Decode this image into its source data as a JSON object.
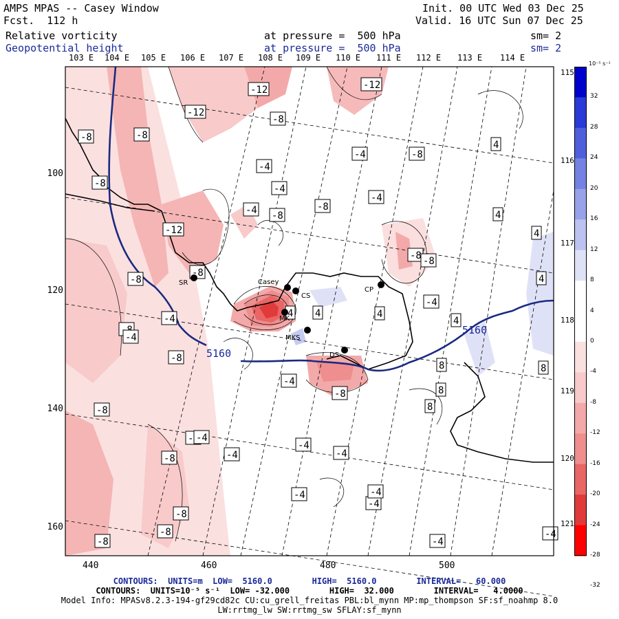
{
  "header": {
    "title": "AMPS MPAS -- Casey Window",
    "fcst": "Fcst.  112 h",
    "init": "Init. 00 UTC Wed 03 Dec 25",
    "valid": "Valid. 16 UTC Sun 07 Dec 25",
    "field1": "Relative vorticity",
    "field1_level": "at pressure =  500 hPa",
    "field1_sm": "sm= 2",
    "field2": "Geopotential height",
    "field2_level": "at pressure =  500 hPa",
    "field2_sm": "sm= 2"
  },
  "map": {
    "top_longitudes": [
      "103 E",
      "104 E",
      "105 E",
      "106 E",
      "107 E",
      "108 E",
      "109 E",
      "110 E",
      "111 E",
      "112 E",
      "113 E",
      "114 E"
    ],
    "right_longitudes": [
      "115 E",
      "116 E",
      "117 E",
      "118 E",
      "119 E",
      "120 E",
      "121 E"
    ],
    "y_ticks": [
      "100",
      "120",
      "140",
      "160"
    ],
    "x_ticks": [
      "440",
      "460",
      "480",
      "500"
    ],
    "contour_labels": [
      "-12",
      "-12",
      "-12",
      "-8",
      "-8",
      "-8",
      "-8",
      "-8",
      "-8",
      "-8",
      "-8",
      "-8",
      "-8",
      "-8",
      "-8",
      "-8",
      "-8",
      "-8",
      "-8",
      "-4",
      "-4",
      "-4",
      "-4",
      "-4",
      "-4",
      "-4",
      "-4",
      "-4",
      "-4",
      "-4",
      "-4",
      "-4",
      "-4",
      "-4",
      "4",
      "4",
      "4",
      "4",
      "4",
      "4",
      "4",
      "4",
      "8",
      "8",
      "8",
      "8",
      "-4",
      "-8",
      "-4",
      "-4",
      "-8",
      "-8",
      "-4",
      "-12"
    ],
    "height_contour_label": "5160",
    "stations": [
      "SR",
      "Casey",
      "CS",
      "MK",
      "MKS",
      "DS",
      "CP"
    ]
  },
  "colorbar": {
    "units": "10⁻⁵ s⁻¹",
    "labels": [
      "32",
      "28",
      "24",
      "20",
      "16",
      "12",
      "8",
      "4",
      "0",
      "-4",
      "-8",
      "-12",
      "-16",
      "-20",
      "-24",
      "-28",
      "-32"
    ]
  },
  "footer": {
    "line1": "CONTOURS:  UNITS=m  LOW=  5160.0        HIGH=  5160.0        INTERVAL=   60.000",
    "line2": "CONTOURS:  UNITS=10⁻⁵ s⁻¹  LOW= -32.000        HIGH=  32.000        INTERVAL=   4.0000",
    "line3": "Model Info: MPASv8.2.3-194-gf29cd82c CU:cu_grell_freitas PBL:bl_mynn MP:mp_thompson SF:sf_noahmp 8.0",
    "line4": "LW:rrtmg_lw SW:rrtmg_sw SFLAY:sf_mynn"
  }
}
